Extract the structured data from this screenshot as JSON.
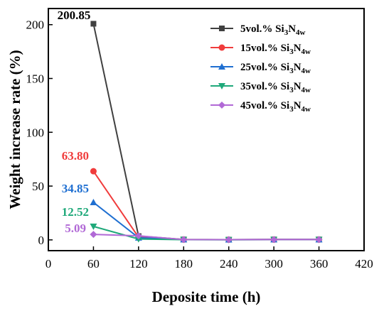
{
  "chart_data": {
    "type": "line",
    "xlabel": "Deposite time (h)",
    "ylabel": "Weight increase rate (%)",
    "xlim": [
      0,
      420
    ],
    "ylim": [
      -10,
      215
    ],
    "xticks": [
      0,
      60,
      120,
      180,
      240,
      300,
      360,
      420
    ],
    "yticks": [
      0,
      50,
      100,
      150,
      200
    ],
    "x": [
      60,
      120,
      180,
      240,
      300,
      360
    ],
    "legend_position": "top-right",
    "grid": false,
    "series": [
      {
        "name_main": "5vol.% Si",
        "name_n": "N",
        "sub1": "3",
        "sub2": "4w",
        "color": "#404040",
        "marker": "square",
        "values": [
          200.85,
          3.5,
          0.4,
          0.2,
          0.4,
          0.4
        ],
        "label": "200.85",
        "label_color": "#000000"
      },
      {
        "name_main": "15vol.% Si",
        "name_n": "N",
        "sub1": "3",
        "sub2": "4w",
        "color": "#f03c3c",
        "marker": "circle",
        "values": [
          63.8,
          2.5,
          0.3,
          0.2,
          0.3,
          0.3
        ],
        "label": "63.80",
        "label_color": "#f03c3c"
      },
      {
        "name_main": "25vol.% Si",
        "name_n": "N",
        "sub1": "3",
        "sub2": "4w",
        "color": "#1f6fd1",
        "marker": "triangle-up",
        "values": [
          34.85,
          2.0,
          0.3,
          0.2,
          0.3,
          0.3
        ],
        "label": "34.85",
        "label_color": "#1f6fd1"
      },
      {
        "name_main": "35vol.% Si",
        "name_n": "N",
        "sub1": "3",
        "sub2": "4w",
        "color": "#1fa97a",
        "marker": "triangle-down",
        "values": [
          12.52,
          0.8,
          0.2,
          0.1,
          0.2,
          0.2
        ],
        "label": "12.52",
        "label_color": "#1fa97a"
      },
      {
        "name_main": "45vol.% Si",
        "name_n": "N",
        "sub1": "3",
        "sub2": "4w",
        "color": "#b169d6",
        "marker": "diamond",
        "values": [
          5.09,
          3.8,
          0.3,
          0.2,
          0.3,
          0.3
        ],
        "label": "5.09",
        "label_color": "#b169d6"
      }
    ]
  }
}
